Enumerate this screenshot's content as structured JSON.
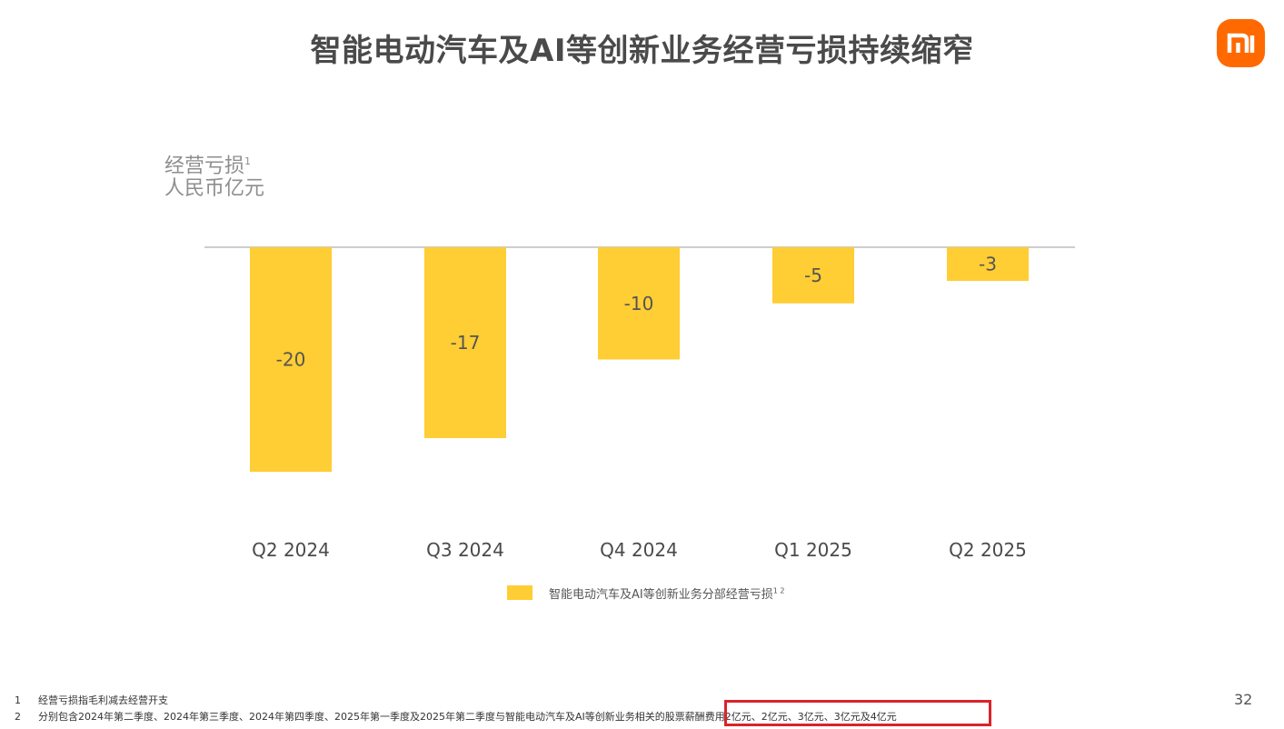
{
  "title": "智能电动汽车及AI等创新业务经营亏损持续缩窄",
  "logo": {
    "icon": "mi-logo-icon",
    "color": "#ff6900"
  },
  "chart_data": {
    "type": "bar",
    "ylabel_line1": "经营亏损",
    "ylabel_sup": "1",
    "ylabel_line2": "人民币亿元",
    "categories": [
      "Q2 2024",
      "Q3 2024",
      "Q4 2024",
      "Q1 2025",
      "Q2 2025"
    ],
    "series": [
      {
        "name": "智能电动汽车及AI等创新业务分部经营亏损",
        "name_sup": "1 2",
        "values": [
          -20,
          -17,
          -10,
          -5,
          -3
        ],
        "labels": [
          "-20",
          "-17",
          "-10",
          "-5",
          "-3"
        ],
        "color": "#ffcd34"
      }
    ],
    "ylim": [
      -20,
      0
    ],
    "grid": false,
    "legend": "bottom-center"
  },
  "footnotes": [
    {
      "num": "1",
      "text": "经营亏损指毛利减去经营开支"
    },
    {
      "num": "2",
      "text": "分别包含2024年第二季度、2024年第三季度、2024年第四季度、2025年第一季度及2025年第二季度与智能电动汽车及AI等创新业务相关的股票薪酬费用2亿元、2亿元、3亿元、3亿元及4亿元"
    }
  ],
  "page_number": "32"
}
